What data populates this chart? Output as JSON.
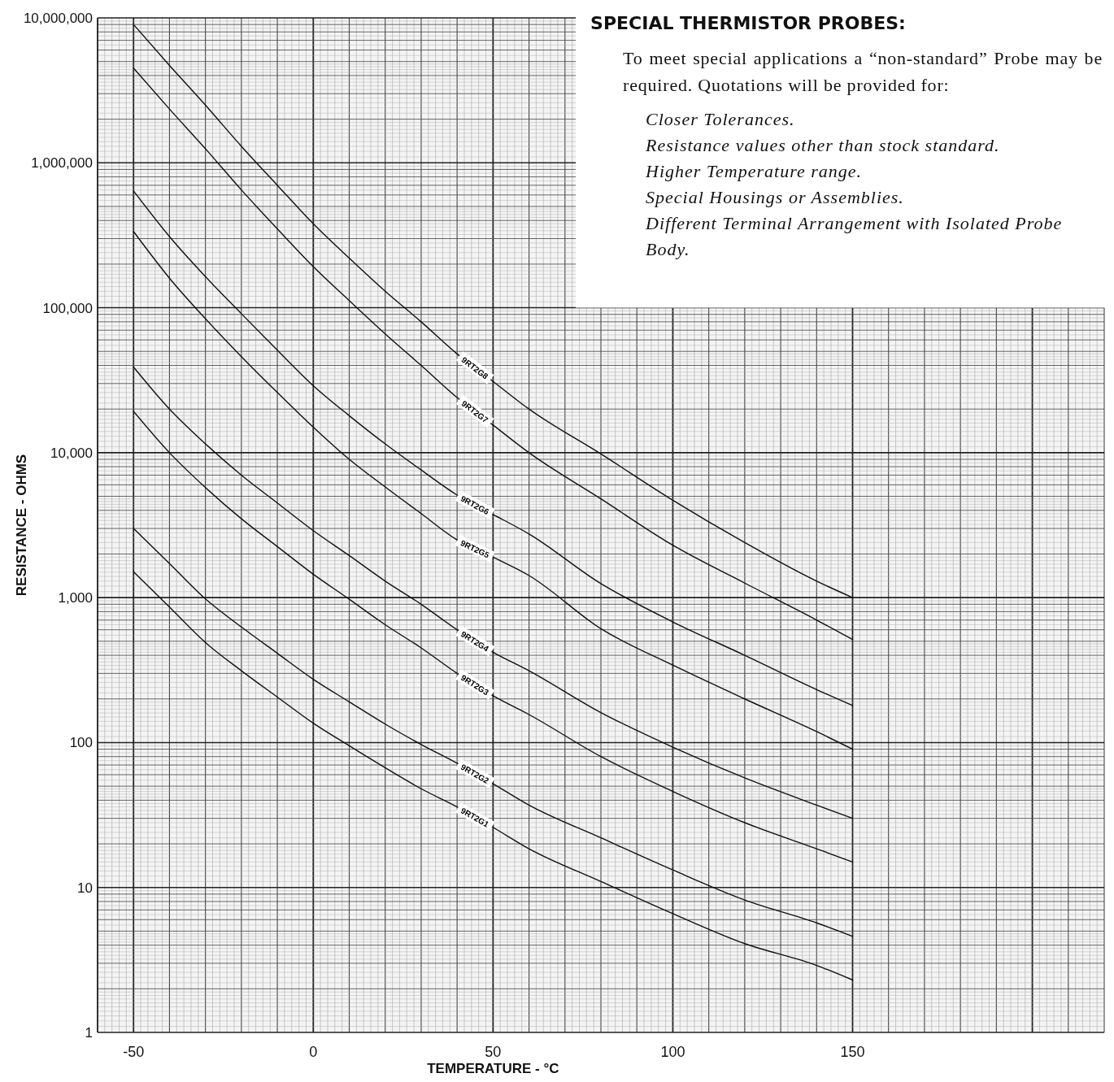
{
  "chart_data": {
    "type": "line",
    "xlabel": "TEMPERATURE - °C",
    "ylabel": "RESISTANCE - OHMS",
    "annotations": [
      "SPECIAL THERMISTOR PROBES:",
      "To meet special applications a “non-standard” Probe may be required. Quotations will be provided for:",
      "Closer Tolerances.",
      "Resistance values other than stock standard.",
      "Higher Temperature range.",
      "Special Housings or Assemblies.",
      "Different Terminal Arrangement with Isolated Probe Body."
    ],
    "x": [
      -50,
      -40,
      -30,
      -20,
      -10,
      0,
      10,
      20,
      30,
      40,
      50,
      60,
      80,
      100,
      120,
      140,
      150
    ],
    "series": [
      {
        "name": "9RT2G8",
        "color": "#111111",
        "values": [
          9000000,
          4700000,
          2500000,
          1300000,
          700000,
          380000,
          220000,
          130000,
          80000,
          48000,
          31000,
          20000,
          9800,
          4700,
          2400,
          1300,
          1000
        ]
      },
      {
        "name": "9RT2G7",
        "color": "#111111",
        "values": [
          4500000,
          2350000,
          1250000,
          650000,
          350000,
          192000,
          112000,
          66000,
          40000,
          24000,
          15500,
          10000,
          4800,
          2300,
          1260,
          700,
          515
        ]
      },
      {
        "name": "9RT2G6",
        "color": "#111111",
        "values": [
          640000,
          310000,
          164000,
          91000,
          51000,
          29000,
          18000,
          11500,
          7600,
          5100,
          3750,
          2750,
          1250,
          680,
          400,
          232,
          180
        ]
      },
      {
        "name": "9RT2G5",
        "color": "#111111",
        "values": [
          336000,
          160000,
          84000,
          46000,
          26000,
          15000,
          9000,
          5800,
          3800,
          2500,
          1900,
          1420,
          610,
          342,
          200,
          119,
          90
        ]
      },
      {
        "name": "9RT2G4",
        "color": "#111111",
        "values": [
          39000,
          20000,
          11500,
          7000,
          4500,
          2900,
          1950,
          1300,
          900,
          600,
          420,
          313,
          161,
          93,
          57,
          37,
          30
        ]
      },
      {
        "name": "9RT2G3",
        "color": "#111111",
        "values": [
          19300,
          10000,
          5750,
          3500,
          2250,
          1450,
          975,
          650,
          450,
          300,
          210,
          156,
          80,
          46,
          28,
          18.5,
          15
        ]
      },
      {
        "name": "9RT2G2",
        "color": "#111111",
        "values": [
          3000,
          1720,
          980,
          627,
          413,
          273,
          191,
          134,
          97,
          72,
          52,
          37,
          22,
          13.2,
          8.2,
          5.7,
          4.6
        ]
      },
      {
        "name": "9RT2G1",
        "color": "#111111",
        "values": [
          1510,
          860,
          490,
          313,
          206,
          136,
          95,
          67,
          48,
          36,
          26,
          18.5,
          11,
          6.6,
          4.1,
          2.9,
          2.3
        ]
      }
    ],
    "xlim": [
      -60,
      220
    ],
    "ylim": [
      1,
      10000000
    ],
    "xticks": [
      -50,
      0,
      50,
      100,
      150
    ],
    "yticks": [
      1,
      10,
      100,
      {
        "value": 1000,
        "label": "1,000"
      },
      {
        "value": 10000,
        "label": "10,000"
      },
      {
        "value": 100000,
        "label": "100,000"
      },
      {
        "value": 1000000,
        "label": "1,000,000"
      },
      {
        "value": 10000000,
        "label": "10,000,000"
      }
    ],
    "log": true,
    "grid": true,
    "legend": false,
    "line_style": "solid",
    "marker": "none"
  }
}
